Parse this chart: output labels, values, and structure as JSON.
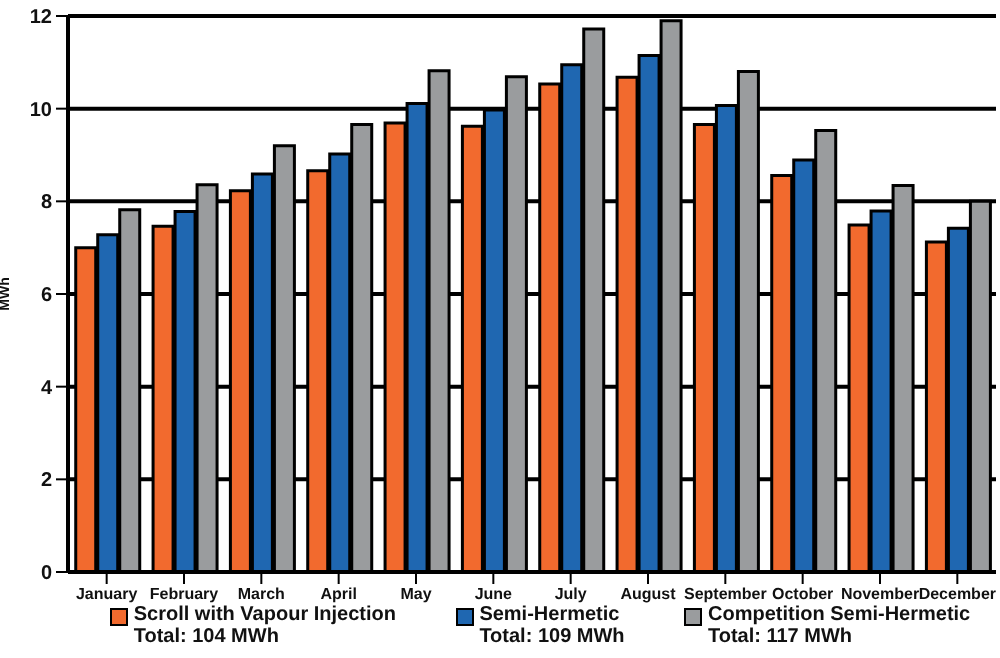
{
  "chart_data": {
    "type": "bar",
    "ylabel": "MWh",
    "categories": [
      "January",
      "February",
      "March",
      "April",
      "May",
      "June",
      "July",
      "August",
      "September",
      "October",
      "November",
      "December"
    ],
    "series": [
      {
        "name": "Scroll with Vapour Injection",
        "color": "#f26a2e",
        "values": [
          7.0,
          7.46,
          8.23,
          8.66,
          9.69,
          9.62,
          10.53,
          10.68,
          9.66,
          8.56,
          7.49,
          7.12
        ]
      },
      {
        "name": "Semi-Hermetic",
        "color": "#1f67b1",
        "values": [
          7.28,
          7.78,
          8.59,
          9.02,
          10.11,
          9.97,
          10.95,
          11.15,
          10.07,
          8.89,
          7.79,
          7.42
        ]
      },
      {
        "name": "Competition Semi-Hermetic",
        "color": "#9a9c9e",
        "values": [
          7.82,
          8.36,
          9.2,
          9.66,
          10.82,
          10.69,
          11.72,
          11.9,
          10.8,
          9.53,
          8.34,
          8.0
        ]
      }
    ],
    "ylim": [
      0,
      12
    ],
    "yticks": [
      0,
      2,
      4,
      6,
      8,
      10,
      12
    ],
    "grid": "y",
    "legend": "bottom",
    "annotations": [
      "Total: 104 MWh",
      "Total: 109 MWh",
      "Total: 117 MWh"
    ]
  }
}
